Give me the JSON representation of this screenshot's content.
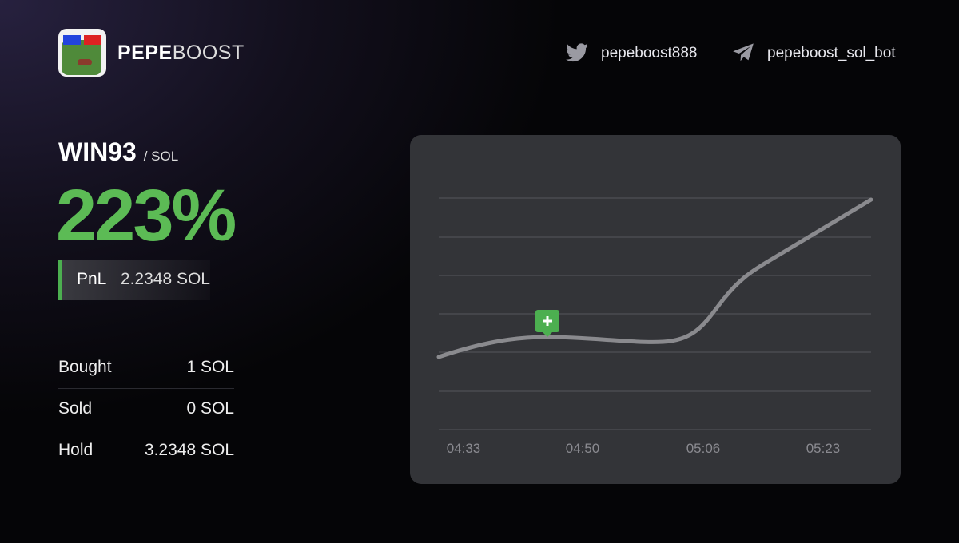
{
  "header": {
    "brand_bold": "PEPE",
    "brand_light": "BOOST",
    "twitter": "pepeboost888",
    "telegram": "pepeboost_sol_bot"
  },
  "token": {
    "name": "WIN93",
    "pair": "/ SOL",
    "gain": "223%",
    "pnl_label": "PnL",
    "pnl_value": "2.2348 SOL"
  },
  "stats": [
    {
      "label": "Bought",
      "value": "1 SOL"
    },
    {
      "label": "Sold",
      "value": "0 SOL"
    },
    {
      "label": "Hold",
      "value": "3.2348 SOL"
    }
  ],
  "chart": {
    "x_labels": [
      "04:33",
      "04:50",
      "05:06",
      "05:23"
    ]
  }
}
